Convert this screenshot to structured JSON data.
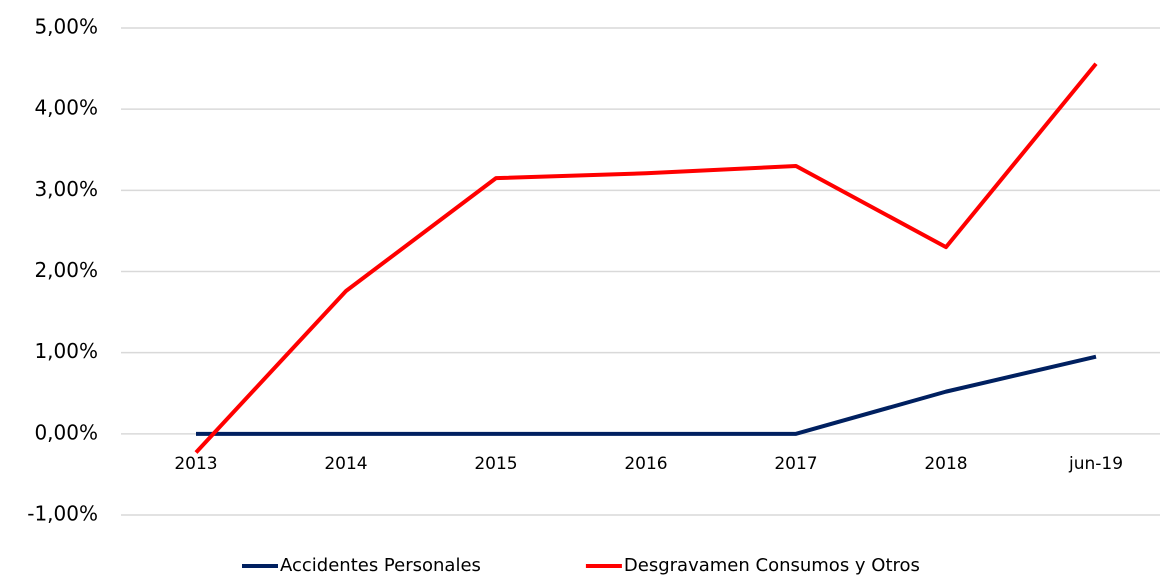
{
  "chart_data": {
    "type": "line",
    "categories": [
      "2013",
      "2014",
      "2015",
      "2016",
      "2017",
      "2018",
      "jun-19"
    ],
    "series": [
      {
        "name": "Accidentes Personales",
        "color": "#002060",
        "values": [
          0,
          0,
          0,
          0,
          0,
          0.52,
          0.95
        ]
      },
      {
        "name": "Desgravamen Consumos y Otros",
        "color": "#ff0000",
        "values": [
          -0.23,
          1.76,
          3.15,
          3.21,
          3.3,
          2.3,
          4.56
        ]
      }
    ],
    "ylim": [
      -1,
      5
    ],
    "yticks": [
      {
        "value": -1,
        "label": "-1,00%"
      },
      {
        "value": 0,
        "label": "0,00%"
      },
      {
        "value": 1,
        "label": "1,00%"
      },
      {
        "value": 2,
        "label": "2,00%"
      },
      {
        "value": 3,
        "label": "3,00%"
      },
      {
        "value": 4,
        "label": "4,00%"
      },
      {
        "value": 5,
        "label": "5,00%"
      }
    ],
    "grid": true,
    "legend": "bottom"
  }
}
